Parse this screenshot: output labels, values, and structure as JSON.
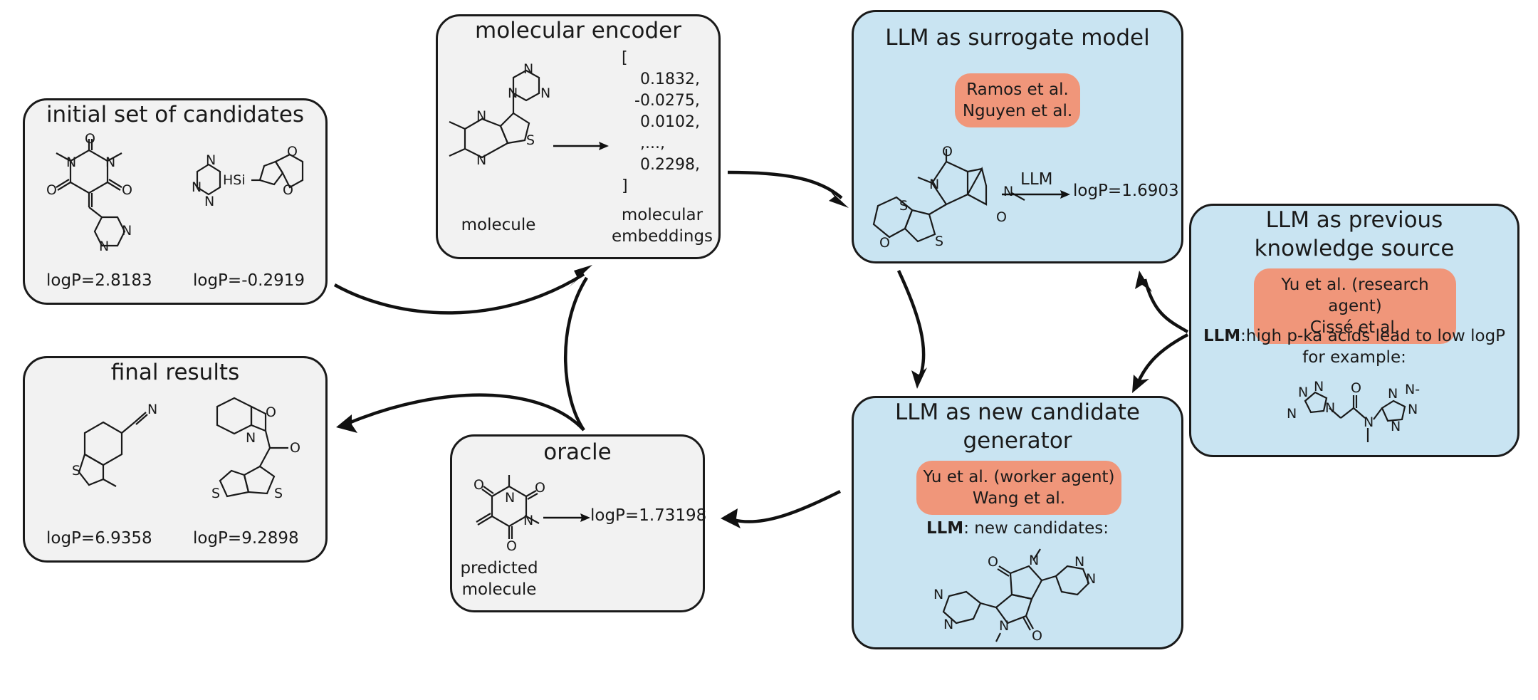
{
  "initial": {
    "title": "initial set of candidates",
    "mol1_logp": "logP=2.8183",
    "mol2_logp": "logP=-0.2919"
  },
  "encoder": {
    "title": "molecular encoder",
    "molecule_label": "molecule",
    "embeddings_label_1": "molecular",
    "embeddings_label_2": "embeddings",
    "vector": [
      "[",
      "0.1832,",
      "-0.0275,",
      "0.0102,",
      ",...,",
      "0.2298,",
      "]"
    ]
  },
  "surrogate": {
    "title": "LLM as surrogate model",
    "refs": [
      "Ramos et al.",
      "Nguyen et al."
    ],
    "arrow_label": "LLM",
    "result": "logP=1.6903"
  },
  "knowledge": {
    "title_1": "LLM as previous",
    "title_2": "knowledge source",
    "refs": [
      "Yu et al. (research agent)",
      "Cissé et al."
    ],
    "llm_prefix": "LLM",
    "statement_1": ":high p-ka acids lead to low logP",
    "statement_2": "for example:"
  },
  "generator": {
    "title_1": "LLM as new candidate",
    "title_2": "generator",
    "refs": [
      "Yu et al. (worker agent)",
      "Wang et al."
    ],
    "llm_prefix": "LLM",
    "statement": ": new candidates:"
  },
  "oracle": {
    "title": "oracle",
    "result": "logP=1.73198",
    "pred_label_1": "predicted",
    "pred_label_2": "molecule"
  },
  "final": {
    "title": "final results",
    "mol1_logp": "logP=6.9358",
    "mol2_logp": "logP=9.2898"
  },
  "colors": {
    "grey_box": "#f2f2f2",
    "blue_box": "#c9e4f2",
    "tag": "#f0967a",
    "stroke": "#1a1a1a"
  }
}
